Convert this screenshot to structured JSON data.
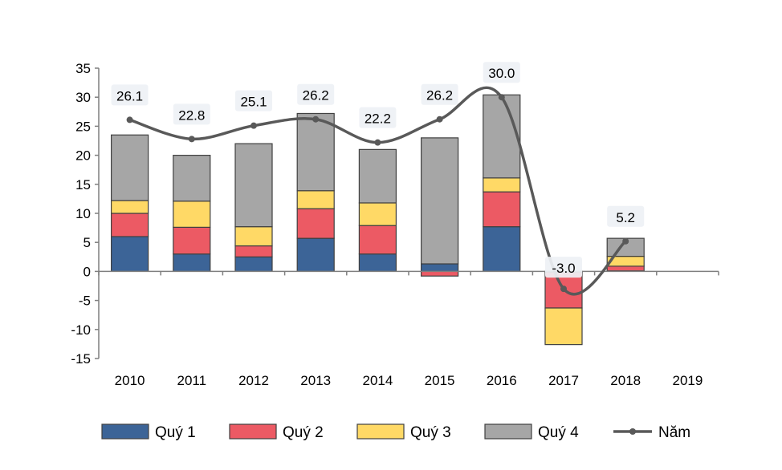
{
  "chart_data": {
    "type": "bar",
    "stacked": true,
    "title": "",
    "xlabel": "",
    "ylabel": "",
    "ylim": [
      -15,
      35
    ],
    "yticks": [
      35,
      30,
      25,
      20,
      15,
      10,
      5,
      0,
      -5,
      -10,
      -15
    ],
    "categories": [
      "2010",
      "2011",
      "2012",
      "2013",
      "2014",
      "2015",
      "2016",
      "2017",
      "2018",
      "2019"
    ],
    "series": [
      {
        "name": "Quý 1",
        "color": "#3c6497",
        "values": [
          6.0,
          3.0,
          2.5,
          5.7,
          3.0,
          1.3,
          7.7,
          -0.1,
          0.1,
          null
        ]
      },
      {
        "name": "Quý 2",
        "color": "#ec5a64",
        "values": [
          4.0,
          4.6,
          1.9,
          5.1,
          4.9,
          -0.8,
          6.0,
          -6.2,
          0.8,
          null
        ]
      },
      {
        "name": "Quý 3",
        "color": "#ffd966",
        "values": [
          2.2,
          4.5,
          3.3,
          3.1,
          3.9,
          0.0,
          2.4,
          -6.3,
          1.7,
          null
        ]
      },
      {
        "name": "Quý 4",
        "color": "#a6a6a6",
        "values": [
          11.3,
          7.9,
          14.3,
          13.3,
          9.2,
          21.7,
          14.3,
          0.0,
          3.1,
          null
        ]
      }
    ],
    "line": {
      "name": "Năm",
      "color": "#595959",
      "values": [
        26.1,
        22.8,
        25.1,
        26.2,
        22.2,
        26.2,
        30.0,
        -3.0,
        5.2,
        null
      ],
      "labels": [
        "26.1",
        "22.8",
        "25.1",
        "26.2",
        "22.2",
        "26.2",
        "30.0",
        "-3.0",
        "5.2",
        ""
      ]
    },
    "legend": {
      "position": "bottom",
      "entries": [
        "Quý 1",
        "Quý 2",
        "Quý 3",
        "Quý 4",
        "Năm"
      ]
    }
  }
}
